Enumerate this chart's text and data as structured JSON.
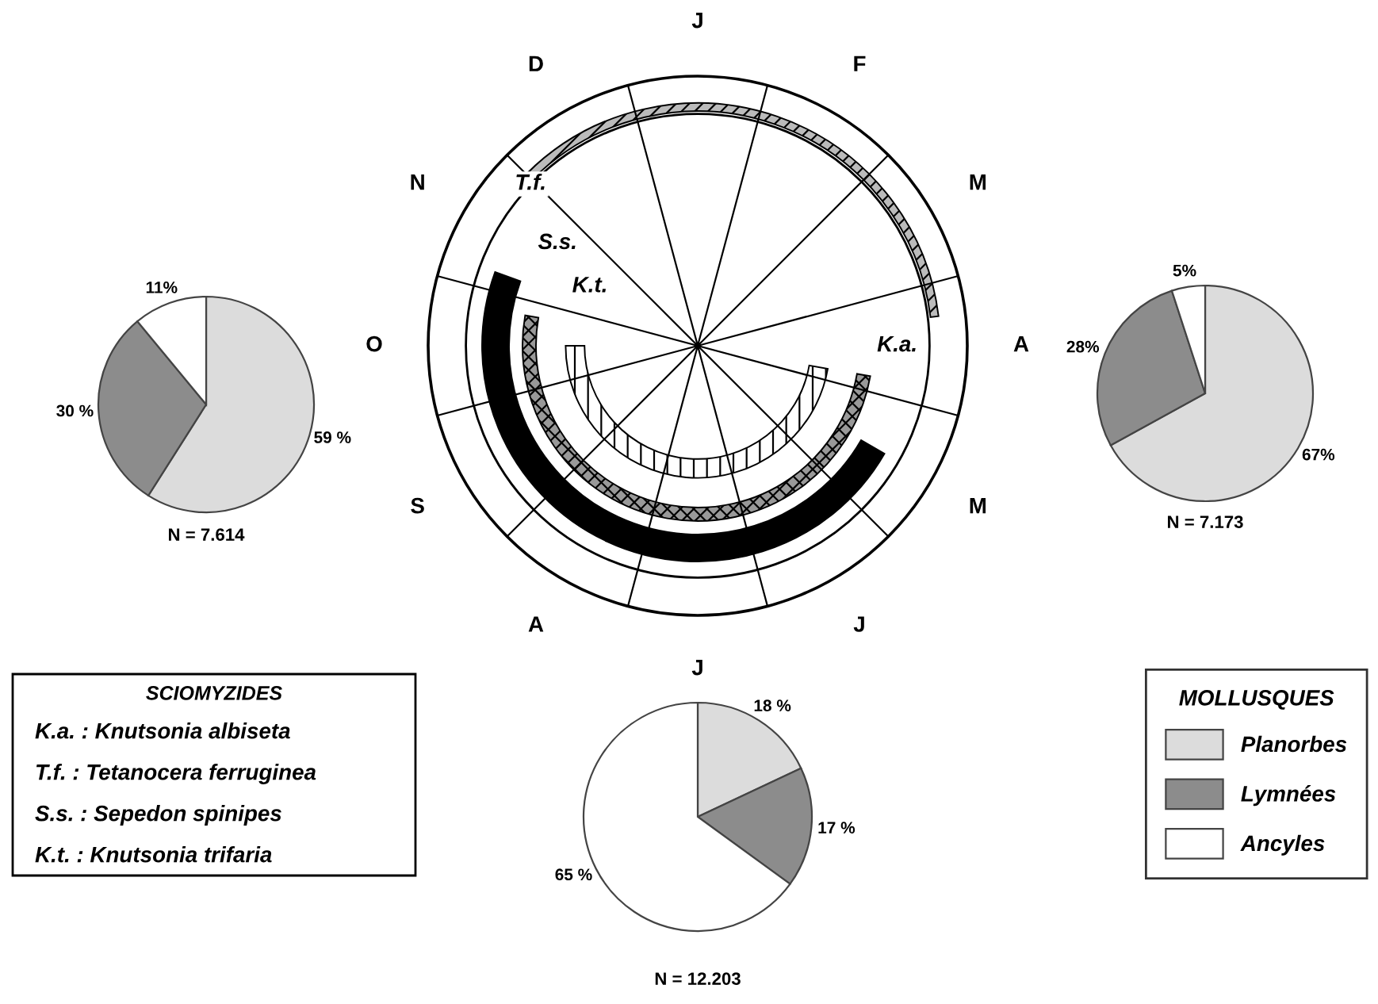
{
  "chart_data": [
    {
      "type": "pie",
      "categories": [
        "Planorbes",
        "Lymnées",
        "Ancyles"
      ],
      "values": [
        59,
        30,
        11
      ],
      "colors": [
        "#dcdcdc",
        "#8c8c8c",
        "#ffffff"
      ],
      "value_labels": [
        "59 %",
        "30 %",
        "11%"
      ],
      "annotations": [
        "N = 7.614"
      ],
      "legend": "right",
      "legend_title": "MOLLUSQUES"
    },
    {
      "type": "other",
      "categories": [
        "J",
        "F",
        "M",
        "A",
        "M",
        "J",
        "J",
        "A",
        "S",
        "O",
        "N",
        "D"
      ],
      "legend_title": "SCIOMYZIDES",
      "annotations": [
        "K.a.",
        "T.f.",
        "S.s.",
        "K.t.",
        "K.a. : Knutsonia albiseta",
        "T.f. : Tetanocera ferruginea",
        "S.s. : Sepedon spinipes",
        "K.t. : Knutsonia trifaria"
      ]
    },
    {
      "type": "pie",
      "categories": [
        null,
        null,
        null
      ],
      "values": [
        67,
        28,
        5
      ],
      "colors": [
        "#dcdcdc",
        "#8c8c8c",
        "#ffffff"
      ],
      "value_labels": [
        "67%",
        "28%",
        "5%"
      ],
      "annotations": [
        "N = 7.173"
      ]
    },
    {
      "type": "pie",
      "categories": [
        null,
        null,
        null
      ],
      "values": [
        18,
        17,
        65
      ],
      "colors": [
        "#dcdcdc",
        "#8c8c8c",
        "#ffffff"
      ],
      "value_labels": [
        "18 %",
        "17 %",
        "65 %"
      ],
      "annotations": [
        "N = 12.203"
      ]
    }
  ]
}
